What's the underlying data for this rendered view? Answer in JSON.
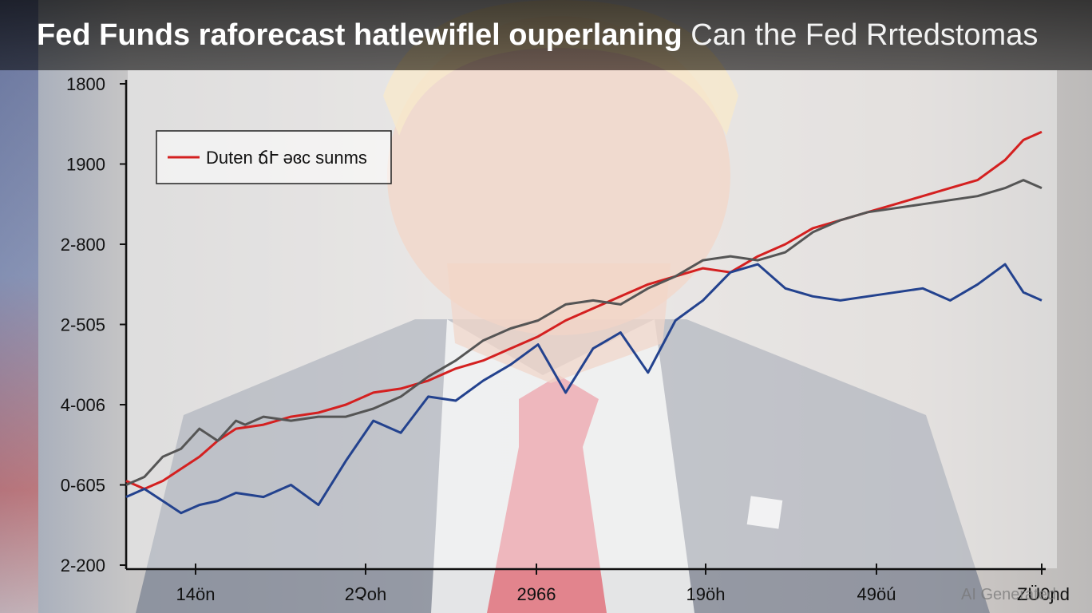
{
  "header": {
    "title_bold": "Fed Funds raforecast hatlewiflel ouperlaning",
    "title_light": "Can the Fed Rrtedstomas"
  },
  "watermark": "AI Generated",
  "colors": {
    "red_series": "#d42020",
    "gray_series": "#555555",
    "blue_series": "#23428e",
    "axis": "#111111"
  },
  "chart_data": {
    "type": "line",
    "title": "",
    "xlabel": "",
    "ylabel": "",
    "y_ticks": [
      "1800",
      "1900",
      "2-800",
      "2-505",
      "4-006",
      "0-605",
      "2-200"
    ],
    "x_ticks": [
      "14ön",
      "2Չoh",
      "2966",
      "19ӧh",
      "49ӧú",
      "ZÜ0ɲd"
    ],
    "xlim": [
      0,
      100
    ],
    "ylim": [
      0,
      6
    ],
    "grid": false,
    "legend": {
      "position": "top-left",
      "entries": [
        "Duten ճՒ ǝɞc sunms"
      ]
    },
    "series": [
      {
        "name": "Duten ճՒ ǝɞc sunms",
        "color": "#d42020",
        "x": [
          0,
          2,
          4,
          6,
          8,
          10,
          12,
          15,
          18,
          21,
          24,
          27,
          30,
          33,
          36,
          39,
          42,
          45,
          48,
          51,
          54,
          57,
          60,
          63,
          66,
          69,
          72,
          75,
          78,
          81,
          84,
          87,
          90,
          93,
          96,
          98,
          100
        ],
        "y": [
          1.05,
          0.95,
          1.05,
          1.2,
          1.35,
          1.55,
          1.7,
          1.75,
          1.85,
          1.9,
          2.0,
          2.15,
          2.2,
          2.3,
          2.45,
          2.55,
          2.7,
          2.85,
          3.05,
          3.2,
          3.35,
          3.5,
          3.6,
          3.7,
          3.65,
          3.85,
          4.0,
          4.2,
          4.3,
          4.4,
          4.5,
          4.6,
          4.7,
          4.8,
          5.05,
          5.3,
          5.4
        ]
      },
      {
        "name": "",
        "color": "#555555",
        "x": [
          0,
          2,
          4,
          6,
          8,
          10,
          12,
          13,
          15,
          18,
          21,
          24,
          27,
          30,
          33,
          36,
          39,
          42,
          45,
          48,
          51,
          54,
          57,
          60,
          63,
          66,
          69,
          72,
          75,
          78,
          81,
          84,
          87,
          90,
          93,
          96,
          98,
          100
        ],
        "y": [
          1.0,
          1.1,
          1.35,
          1.45,
          1.7,
          1.55,
          1.8,
          1.75,
          1.85,
          1.8,
          1.85,
          1.85,
          1.95,
          2.1,
          2.35,
          2.55,
          2.8,
          2.95,
          3.05,
          3.25,
          3.3,
          3.25,
          3.45,
          3.6,
          3.8,
          3.85,
          3.8,
          3.9,
          4.15,
          4.3,
          4.4,
          4.45,
          4.5,
          4.55,
          4.6,
          4.7,
          4.8,
          4.7
        ]
      },
      {
        "name": "",
        "color": "#23428e",
        "x": [
          0,
          2,
          4,
          6,
          8,
          10,
          12,
          15,
          18,
          21,
          24,
          27,
          30,
          33,
          36,
          39,
          42,
          45,
          48,
          51,
          54,
          57,
          60,
          63,
          66,
          69,
          72,
          75,
          78,
          81,
          84,
          87,
          90,
          93,
          96,
          98,
          100
        ],
        "y": [
          0.85,
          0.95,
          0.8,
          0.65,
          0.75,
          0.8,
          0.9,
          0.85,
          1.0,
          0.75,
          1.3,
          1.8,
          1.65,
          2.1,
          2.05,
          2.3,
          2.5,
          2.75,
          2.15,
          2.7,
          2.9,
          2.4,
          3.05,
          3.3,
          3.65,
          3.75,
          3.45,
          3.35,
          3.3,
          3.35,
          3.4,
          3.45,
          3.3,
          3.5,
          3.75,
          3.4,
          3.3
        ]
      }
    ]
  }
}
